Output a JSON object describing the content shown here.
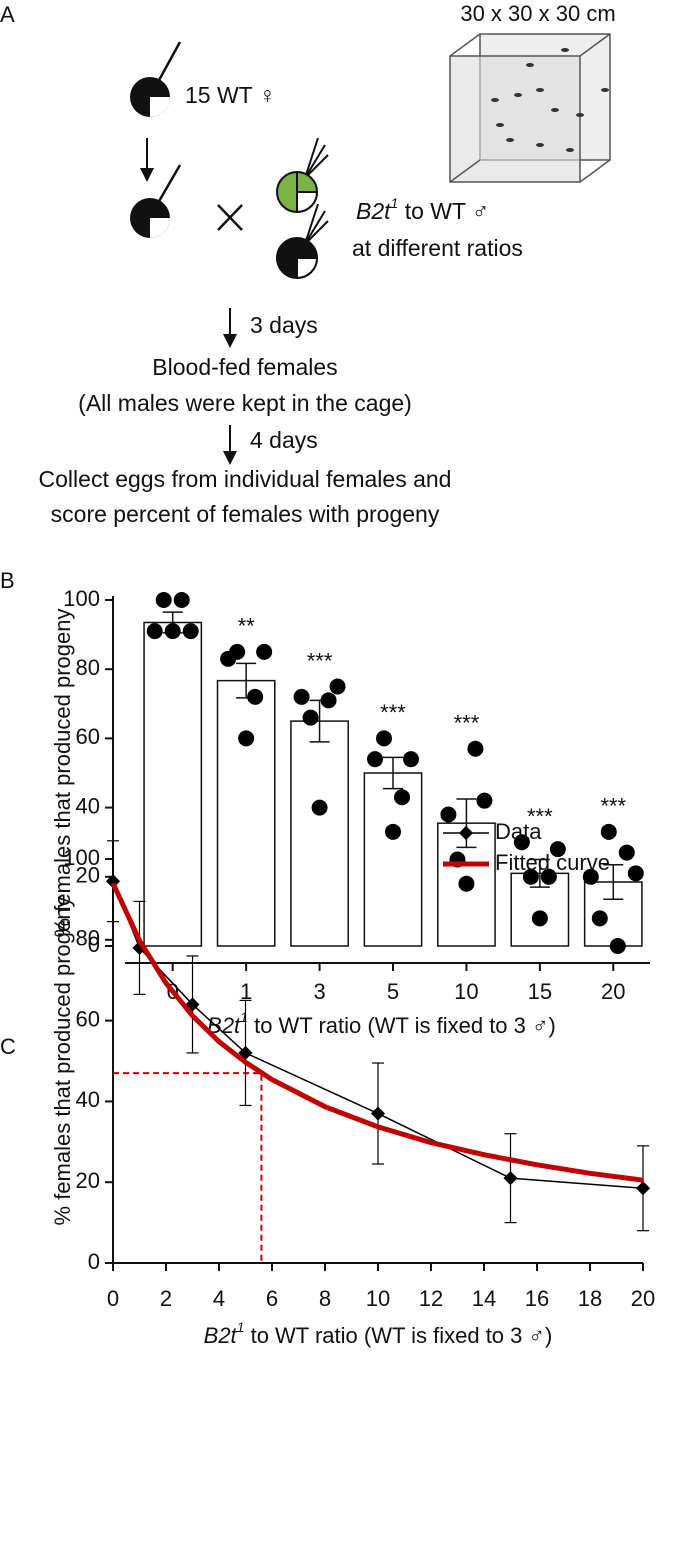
{
  "panel_labels": [
    "A",
    "B",
    "C"
  ],
  "diagram": {
    "cage_label": "30 x 30 x 30 cm",
    "females": "15 WT ♀",
    "males": [
      "B2t",
      "1",
      " to WT ♂"
    ],
    "ratios": "at different ratios",
    "step1": "3 days",
    "blood_fed": [
      "Blood-fed females",
      "(All males were kept in the cage)"
    ],
    "step2": "4 days",
    "collect": [
      "Collect eggs from individual females and",
      "score percent of females with progeny"
    ]
  },
  "chart_data": [
    {
      "type": "bar",
      "ylabel": "% females that produced progeny",
      "xlabel": [
        "B2t",
        "1",
        " to WT ratio (WT is fixed to 3 ♂)"
      ],
      "categories": [
        "0",
        "1",
        "3",
        "5",
        "10",
        "15",
        "20"
      ],
      "values": [
        93.5,
        76.7,
        65,
        50,
        35.5,
        21,
        18.5
      ],
      "errors": [
        3,
        5,
        6,
        4.5,
        7,
        4,
        5
      ],
      "points": [
        [
          91,
          100,
          91,
          100,
          91
        ],
        [
          83,
          85,
          60,
          72,
          85
        ],
        [
          72,
          66,
          40,
          71,
          75
        ],
        [
          54,
          60,
          33,
          43,
          54
        ],
        [
          38,
          25,
          18,
          57,
          42
        ],
        [
          30,
          20,
          8,
          20,
          28
        ],
        [
          20,
          8,
          33,
          0,
          27,
          21
        ]
      ],
      "significance": [
        null,
        "**",
        "***",
        "***",
        "***",
        "***",
        "***"
      ],
      "color": "#ffffff",
      "point_color": "#000000",
      "ylim": [
        0,
        100
      ],
      "yticks": [
        0,
        20,
        40,
        60,
        80,
        100
      ]
    },
    {
      "type": "line",
      "ylabel": "% females that produced progeny",
      "xlabel": [
        "B2t",
        "1",
        " to WT ratio (WT is fixed to 3 ♂)"
      ],
      "x": [
        0,
        1,
        3,
        5,
        10,
        15,
        20
      ],
      "series": [
        {
          "name": "Data",
          "color": "#000000",
          "values": [
            94.5,
            78,
            64,
            52,
            37,
            21,
            18.5
          ],
          "errors": [
            10,
            11.5,
            12,
            13,
            12.5,
            11,
            10.5
          ]
        },
        {
          "name": "Fitted curve",
          "color": "#c00000",
          "x": [
            0,
            1,
            2,
            3,
            4,
            5,
            6,
            8,
            10,
            12,
            14,
            16,
            18,
            20
          ],
          "values": [
            94,
            79.8,
            69.3,
            61.2,
            54.8,
            49.7,
            45.4,
            38.7,
            33.7,
            29.8,
            26.8,
            24.3,
            22.2,
            20.5
          ]
        }
      ],
      "reference": {
        "x": 5.6,
        "y": 47,
        "color": "#d00000"
      },
      "legend": "upper right",
      "xlim": [
        0,
        20
      ],
      "xticks": [
        0,
        2,
        4,
        6,
        8,
        10,
        12,
        14,
        16,
        18,
        20
      ],
      "ylim": [
        0,
        100
      ],
      "yticks": [
        0,
        20,
        40,
        60,
        80,
        100
      ]
    }
  ]
}
